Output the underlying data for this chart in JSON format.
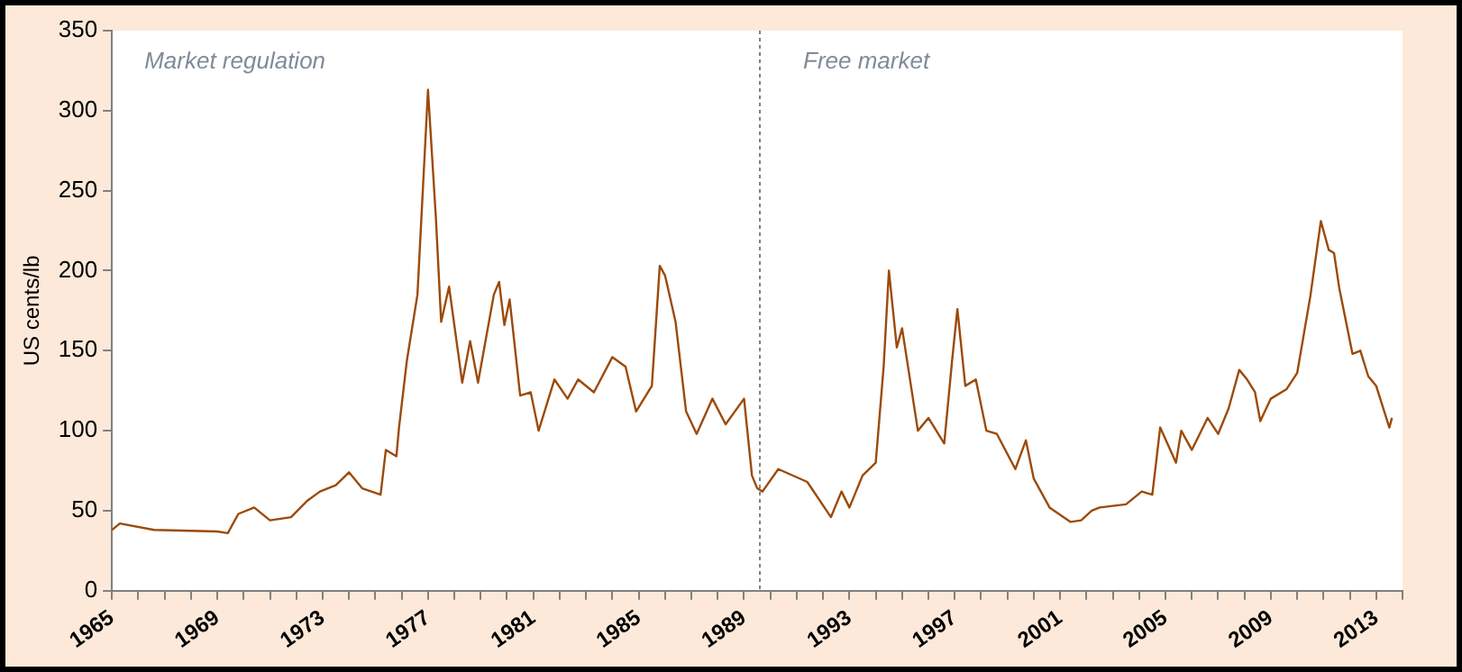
{
  "chart_data": {
    "type": "line",
    "ylabel": "US cents/lb",
    "annotations": [
      "Market regulation",
      "Free market"
    ],
    "x": [
      1965.0,
      1965.3,
      1966.6,
      1969.0,
      1969.4,
      1969.8,
      1970.4,
      1971.0,
      1971.8,
      1972.4,
      1972.9,
      1973.5,
      1974.0,
      1974.5,
      1975.2,
      1975.4,
      1975.8,
      1975.9,
      1976.2,
      1976.6,
      1977.0,
      1977.3,
      1977.5,
      1977.8,
      1978.3,
      1978.6,
      1978.9,
      1979.5,
      1979.7,
      1979.9,
      1980.1,
      1980.5,
      1980.9,
      1981.2,
      1981.8,
      1982.3,
      1982.7,
      1983.3,
      1984.0,
      1984.5,
      1984.9,
      1985.5,
      1985.8,
      1986.0,
      1986.4,
      1986.8,
      1987.2,
      1987.8,
      1988.3,
      1989.0,
      1989.3,
      1989.5,
      1989.7,
      1990.3,
      1991.4,
      1992.3,
      1992.7,
      1993.0,
      1993.5,
      1994.0,
      1994.3,
      1994.5,
      1994.8,
      1995.0,
      1995.6,
      1996.0,
      1996.6,
      1996.9,
      1997.1,
      1997.4,
      1997.8,
      1998.2,
      1998.6,
      1999.3,
      1999.7,
      2000.0,
      2000.6,
      2001.4,
      2001.8,
      2002.2,
      2002.5,
      2003.5,
      2004.1,
      2004.5,
      2004.8,
      2005.4,
      2005.6,
      2006.0,
      2006.6,
      2007.0,
      2007.4,
      2007.8,
      2008.1,
      2008.4,
      2008.6,
      2009.0,
      2009.6,
      2010.0,
      2010.5,
      2010.9,
      2011.2,
      2011.4,
      2011.6,
      2012.1,
      2012.4,
      2012.7,
      2013.0,
      2013.5,
      2013.6
    ],
    "series": [
      {
        "color": "#9c4a0a",
        "values": [
          38,
          42,
          38,
          37,
          36,
          48,
          52,
          44,
          46,
          56,
          62,
          66,
          74,
          64,
          60,
          88,
          84,
          102,
          144,
          185,
          313,
          233,
          168,
          190,
          130,
          156,
          130,
          185,
          193,
          166,
          182,
          122,
          124,
          100,
          132,
          120,
          132,
          124,
          146,
          140,
          112,
          128,
          203,
          197,
          168,
          112,
          98,
          120,
          104,
          120,
          72,
          64,
          62,
          76,
          68,
          46,
          62,
          52,
          72,
          80,
          140,
          200,
          152,
          164,
          100,
          108,
          92,
          144,
          176,
          128,
          132,
          100,
          98,
          76,
          94,
          70,
          52,
          43,
          44,
          50,
          52,
          54,
          62,
          60,
          102,
          80,
          100,
          88,
          108,
          98,
          114,
          138,
          132,
          124,
          106,
          120,
          126,
          136,
          184,
          231,
          213,
          211,
          189,
          148,
          150,
          134,
          128,
          102,
          108
        ]
      }
    ],
    "xlim": [
      1965,
      2014
    ],
    "ylim": [
      0,
      350
    ],
    "yticks": [
      0,
      50,
      100,
      150,
      200,
      250,
      300,
      350
    ],
    "xticks": [
      1965,
      {
        "value": 1966,
        "label": null
      },
      {
        "value": 1967,
        "label": null
      },
      {
        "value": 1968,
        "label": null
      },
      1969,
      {
        "value": 1970,
        "label": null
      },
      {
        "value": 1971,
        "label": null
      },
      {
        "value": 1972,
        "label": null
      },
      1973,
      {
        "value": 1974,
        "label": null
      },
      {
        "value": 1975,
        "label": null
      },
      {
        "value": 1976,
        "label": null
      },
      1977,
      {
        "value": 1978,
        "label": null
      },
      {
        "value": 1979,
        "label": null
      },
      {
        "value": 1980,
        "label": null
      },
      1981,
      {
        "value": 1982,
        "label": null
      },
      {
        "value": 1983,
        "label": null
      },
      {
        "value": 1984,
        "label": null
      },
      1985,
      {
        "value": 1986,
        "label": null
      },
      {
        "value": 1987,
        "label": null
      },
      {
        "value": 1988,
        "label": null
      },
      1989,
      {
        "value": 1990,
        "label": null
      },
      {
        "value": 1991,
        "label": null
      },
      {
        "value": 1992,
        "label": null
      },
      1993,
      {
        "value": 1994,
        "label": null
      },
      {
        "value": 1995,
        "label": null
      },
      {
        "value": 1996,
        "label": null
      },
      1997,
      {
        "value": 1998,
        "label": null
      },
      {
        "value": 1999,
        "label": null
      },
      {
        "value": 2000,
        "label": null
      },
      2001,
      {
        "value": 2002,
        "label": null
      },
      {
        "value": 2003,
        "label": null
      },
      {
        "value": 2004,
        "label": null
      },
      2005,
      {
        "value": 2006,
        "label": null
      },
      {
        "value": 2007,
        "label": null
      },
      {
        "value": 2008,
        "label": null
      },
      2009,
      {
        "value": 2010,
        "label": null
      },
      {
        "value": 2011,
        "label": null
      },
      {
        "value": 2012,
        "label": null
      },
      2013,
      {
        "value": 2014,
        "label": null
      }
    ],
    "ref_lines": [
      {
        "axis": "x",
        "value": 1989.6,
        "color": "#808080",
        "line_style": "dotted"
      }
    ],
    "grid": false,
    "legend": false,
    "marker": "none",
    "line_style": "solid"
  }
}
